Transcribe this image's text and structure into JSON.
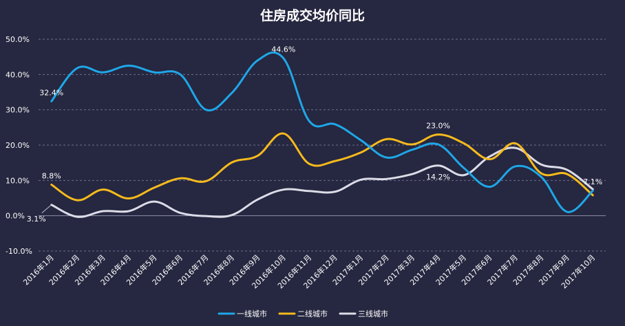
{
  "chart_data": {
    "type": "line",
    "title": "住房成交均价同比",
    "xlabel": "",
    "ylabel": "",
    "ylim": [
      -10,
      50
    ],
    "yticks": [
      "50.0%",
      "40.0%",
      "30.0%",
      "20.0%",
      "10.0%",
      "0.0%",
      "-10.0%"
    ],
    "ytick_values": [
      50,
      40,
      30,
      20,
      10,
      0,
      -10
    ],
    "categories": [
      "2016年1月",
      "2016年2月",
      "2016年3月",
      "2016年4月",
      "2016年5月",
      "2016年6月",
      "2016年7月",
      "2016年8月",
      "2016年9月",
      "2016年10月",
      "2016年11月",
      "2016年12月",
      "2017年1月",
      "2017年2月",
      "2017年3月",
      "2017年4月",
      "2017年5月",
      "2017年6月",
      "2017年7月",
      "2017年8月",
      "2017年9月",
      "2017年10月"
    ],
    "grid": true,
    "legend_position": "bottom-center",
    "series": [
      {
        "name": "一线城市",
        "color": "#1EA7E8",
        "values": [
          32.4,
          41.8,
          40.6,
          42.5,
          40.6,
          40.0,
          30.0,
          34.8,
          44.0,
          44.6,
          26.8,
          25.9,
          21.4,
          16.5,
          18.7,
          20.2,
          13.5,
          8.2,
          14.0,
          11.0,
          1.1,
          7.1
        ]
      },
      {
        "name": "二线城市",
        "color": "#F6BB1C",
        "values": [
          8.8,
          4.4,
          7.4,
          4.9,
          8.0,
          10.6,
          9.8,
          15.1,
          17.0,
          23.3,
          14.7,
          15.5,
          17.9,
          21.7,
          20.2,
          23.0,
          20.5,
          16.0,
          20.5,
          12.0,
          11.8,
          5.8
        ]
      },
      {
        "name": "三线城市",
        "color": "#DCDCE8",
        "values": [
          3.1,
          -0.3,
          1.3,
          1.3,
          4.0,
          0.8,
          -0.1,
          0.2,
          4.6,
          7.4,
          7.0,
          6.8,
          10.2,
          10.4,
          11.8,
          14.2,
          11.5,
          16.8,
          19.2,
          14.5,
          13.0,
          7.5
        ]
      }
    ],
    "annotations": [
      {
        "series": 0,
        "index": 0,
        "text": "32.4%",
        "pos": "above"
      },
      {
        "series": 0,
        "index": 9,
        "text": "44.6%",
        "pos": "above"
      },
      {
        "series": 0,
        "index": 21,
        "text": "7.1%",
        "pos": "above"
      },
      {
        "series": 1,
        "index": 0,
        "text": "8.8%",
        "pos": "above"
      },
      {
        "series": 1,
        "index": 15,
        "text": "23.0%",
        "pos": "above"
      },
      {
        "series": 2,
        "index": 0,
        "text": "3.1%",
        "pos": "callout-below-left"
      },
      {
        "series": 2,
        "index": 15,
        "text": "14.2%",
        "pos": "below"
      }
    ]
  }
}
